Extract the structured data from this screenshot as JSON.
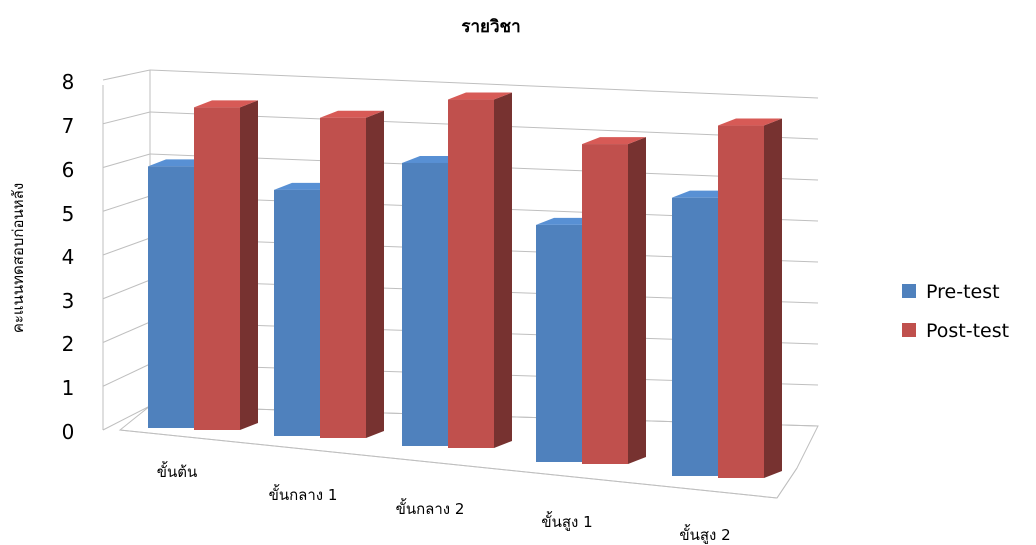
{
  "chart_data": {
    "type": "bar",
    "title": "รายวิชา",
    "ylabel": "คะแนนทดสอบก่อนหลัง",
    "xlabel": "",
    "categories": [
      "ขั้นต้น",
      "ขั้นกลาง 1",
      "ขั้นกลาง 2",
      "ขั้นสูง 1",
      "ขั้นสูง 2"
    ],
    "series": [
      {
        "name": "Pre-test",
        "values": [
          6.0,
          5.6,
          6.4,
          5.3,
          6.2
        ],
        "color": "#4F81BD"
      },
      {
        "name": "Post-test",
        "values": [
          7.4,
          7.3,
          7.9,
          7.2,
          7.9
        ],
        "color": "#C0504D"
      }
    ],
    "ylim": [
      0,
      8
    ],
    "yticks": [
      "0",
      "1",
      "2",
      "3",
      "4",
      "5",
      "6",
      "7",
      "8"
    ],
    "grid": true,
    "legend": "right",
    "style": "3d-clustered-column"
  }
}
